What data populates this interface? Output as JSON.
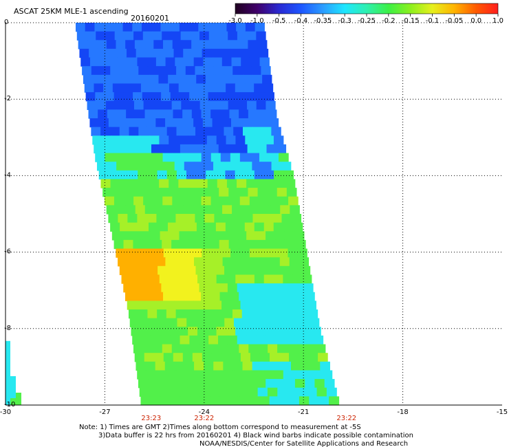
{
  "title": "ASCAT 25KM MLE-1 ascending",
  "date": "20160201",
  "colorbar": {
    "tick_labels": [
      "-3.0",
      "-1.0",
      "-0.5",
      "-0.4",
      "-0.35",
      "-0.3",
      "-0.25",
      "-0.2",
      "-0.15",
      "-0.1",
      "-0.05",
      "0.0",
      "1.0"
    ],
    "stops": [
      "#200020",
      "#40006a",
      "#2a2ad2",
      "#1e56ff",
      "#2c9cff",
      "#1ee6ff",
      "#2ef0b0",
      "#3cf046",
      "#8cf01e",
      "#e6f01e",
      "#ffb400",
      "#ff5a00",
      "#ff1e1e"
    ]
  },
  "axes": {
    "x_labels": [
      "-30",
      "-27",
      "-24",
      "-21",
      "-18",
      "-15"
    ],
    "y_labels": [
      "0",
      "-2",
      "-4",
      "-6",
      "-8",
      "-10"
    ],
    "x_range": [
      -30,
      -15
    ],
    "y_range": [
      0,
      -10
    ]
  },
  "time_labels": [
    {
      "text": "23:23",
      "lon": -25.6
    },
    {
      "text": "23:22",
      "lon": -24.0
    },
    {
      "text": "23:22",
      "lon": -19.7
    }
  ],
  "notes": {
    "line1": "Note: 1) Times are GMT 2)Times along bottom correspond to measurement at -5S",
    "line2": "3)Data buffer is 22 hrs from 20160201 4) Black wind barbs indicate possible contamination",
    "line3": "NOAA/NESDIS/Center for Satellite Applications and Research"
  },
  "colors": {
    "blue": "#1446f5",
    "blue_light": "#2678ff",
    "cyan": "#28e8f0",
    "green": "#52f04a",
    "green_yellow": "#a6f028",
    "yellow": "#f2f21e",
    "orange": "#ffb000",
    "time_label": "#cc2200"
  },
  "swath": {
    "description_units": "lon/lat",
    "left_edge": [
      [
        -27.9,
        0.0
      ],
      [
        -27.6,
        -1.8
      ],
      [
        -27.3,
        -3.5
      ],
      [
        -26.8,
        -5.5
      ],
      [
        -26.3,
        -7.5
      ],
      [
        -25.9,
        -10.0
      ]
    ],
    "right_edge": [
      [
        -22.2,
        0.0
      ],
      [
        -21.8,
        -2.5
      ],
      [
        -21.3,
        -4.0
      ],
      [
        -20.9,
        -6.0
      ],
      [
        -20.5,
        -8.0
      ],
      [
        -19.9,
        -10.0
      ]
    ]
  },
  "small_strip": {
    "lon_range": [
      -30.0,
      -29.5
    ],
    "lat_range": [
      -8.0,
      -10.0
    ]
  }
}
